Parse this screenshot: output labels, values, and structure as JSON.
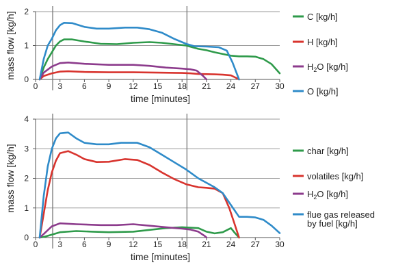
{
  "chart_data": [
    {
      "type": "line",
      "xlabel": "time [minutes]",
      "ylabel": "mass flow [kg/h]",
      "xlim": [
        0,
        30
      ],
      "ylim": [
        0,
        2
      ],
      "x_ticks": [
        0,
        3,
        6,
        9,
        12,
        15,
        18,
        21,
        24,
        27,
        30
      ],
      "y_ticks": [
        0,
        1,
        2
      ],
      "vertical_markers": [
        2.1,
        18.6
      ],
      "grid": "horizontal",
      "legend_position": "right",
      "series": [
        {
          "name": "C [kg/h]",
          "name_main": "C",
          "name_sub": "",
          "name_rest": " [kg/h]",
          "color": "#2e9a4a",
          "points": [
            [
              0.5,
              0
            ],
            [
              1,
              0.35
            ],
            [
              1.5,
              0.6
            ],
            [
              2,
              0.8
            ],
            [
              2.5,
              1
            ],
            [
              3,
              1.12
            ],
            [
              3.5,
              1.18
            ],
            [
              4.5,
              1.18
            ],
            [
              6,
              1.12
            ],
            [
              8,
              1.05
            ],
            [
              10,
              1.04
            ],
            [
              12,
              1.08
            ],
            [
              14,
              1.1
            ],
            [
              15.5,
              1.08
            ],
            [
              17,
              1.04
            ],
            [
              18.5,
              1
            ],
            [
              20,
              0.9
            ],
            [
              21,
              0.86
            ],
            [
              22,
              0.8
            ],
            [
              23,
              0.75
            ],
            [
              24,
              0.7
            ],
            [
              25,
              0.68
            ],
            [
              26,
              0.68
            ],
            [
              27,
              0.67
            ],
            [
              28,
              0.6
            ],
            [
              29,
              0.45
            ],
            [
              30,
              0.18
            ]
          ]
        },
        {
          "name": "H [kg/h]",
          "name_main": "H",
          "name_sub": "",
          "name_rest": " [kg/h]",
          "color": "#d8342e",
          "points": [
            [
              0.5,
              0
            ],
            [
              1,
              0.1
            ],
            [
              2,
              0.18
            ],
            [
              3,
              0.23
            ],
            [
              4,
              0.24
            ],
            [
              6,
              0.22
            ],
            [
              9,
              0.21
            ],
            [
              12,
              0.21
            ],
            [
              15,
              0.2
            ],
            [
              18,
              0.19
            ],
            [
              19,
              0.18
            ],
            [
              20,
              0.16
            ],
            [
              22,
              0.15
            ],
            [
              23,
              0.14
            ],
            [
              24,
              0.12
            ],
            [
              24.6,
              0.05
            ],
            [
              25,
              0
            ]
          ]
        },
        {
          "name": "H2O [kg/h]",
          "name_main": "H",
          "name_sub": "2",
          "name_rest": "O [kg/h]",
          "color": "#8c3b8c",
          "points": [
            [
              0.5,
              0
            ],
            [
              1,
              0.2
            ],
            [
              2,
              0.38
            ],
            [
              3,
              0.48
            ],
            [
              4,
              0.5
            ],
            [
              6,
              0.46
            ],
            [
              9,
              0.43
            ],
            [
              12,
              0.43
            ],
            [
              14,
              0.4
            ],
            [
              16,
              0.35
            ],
            [
              18,
              0.32
            ],
            [
              19,
              0.3
            ],
            [
              19.8,
              0.26
            ],
            [
              20.5,
              0.12
            ],
            [
              21,
              0
            ]
          ]
        },
        {
          "name": "O [kg/h]",
          "name_main": "O",
          "name_sub": "",
          "name_rest": " [kg/h]",
          "color": "#2f8bc9",
          "points": [
            [
              0.5,
              0
            ],
            [
              1,
              0.6
            ],
            [
              1.5,
              1
            ],
            [
              2,
              1.2
            ],
            [
              2.5,
              1.45
            ],
            [
              3,
              1.6
            ],
            [
              3.5,
              1.67
            ],
            [
              4.5,
              1.66
            ],
            [
              6,
              1.55
            ],
            [
              7.5,
              1.5
            ],
            [
              9,
              1.5
            ],
            [
              11,
              1.53
            ],
            [
              12.5,
              1.53
            ],
            [
              14,
              1.48
            ],
            [
              15.5,
              1.38
            ],
            [
              17,
              1.2
            ],
            [
              18.5,
              1.05
            ],
            [
              19.5,
              0.98
            ],
            [
              21,
              0.97
            ],
            [
              22.5,
              0.95
            ],
            [
              23.5,
              0.85
            ],
            [
              24.2,
              0.5
            ],
            [
              25,
              0
            ]
          ]
        }
      ]
    },
    {
      "type": "line",
      "xlabel": "time [minutes]",
      "ylabel": "mass flow [kg/h]",
      "xlim": [
        0,
        30
      ],
      "ylim": [
        0,
        4
      ],
      "x_ticks": [
        0,
        3,
        6,
        9,
        12,
        15,
        18,
        21,
        24,
        27,
        30
      ],
      "y_ticks": [
        0,
        1,
        2,
        3,
        4
      ],
      "vertical_markers": [
        2.1,
        18.6
      ],
      "grid": "horizontal",
      "legend_position": "right",
      "series": [
        {
          "name": "char  [kg/h]",
          "name_main": "char  [kg/h]",
          "name_sub": "",
          "name_rest": "",
          "color": "#2e9a4a",
          "points": [
            [
              0.5,
              0
            ],
            [
              1,
              0.02
            ],
            [
              2,
              0.1
            ],
            [
              3,
              0.18
            ],
            [
              5,
              0.22
            ],
            [
              7,
              0.2
            ],
            [
              9,
              0.18
            ],
            [
              12,
              0.2
            ],
            [
              14,
              0.26
            ],
            [
              16,
              0.32
            ],
            [
              18,
              0.35
            ],
            [
              20,
              0.32
            ],
            [
              21,
              0.2
            ],
            [
              22,
              0.14
            ],
            [
              23,
              0.18
            ],
            [
              24,
              0.32
            ],
            [
              24.5,
              0.15
            ],
            [
              25,
              0
            ]
          ]
        },
        {
          "name": "volatiles [kg/h]",
          "name_main": "volatiles [kg/h]",
          "name_sub": "",
          "name_rest": "",
          "color": "#d8342e",
          "points": [
            [
              0.5,
              0
            ],
            [
              1,
              0.8
            ],
            [
              1.5,
              1.6
            ],
            [
              2,
              2.2
            ],
            [
              2.5,
              2.6
            ],
            [
              3,
              2.85
            ],
            [
              4,
              2.92
            ],
            [
              5,
              2.8
            ],
            [
              6,
              2.65
            ],
            [
              7.5,
              2.55
            ],
            [
              9,
              2.56
            ],
            [
              11,
              2.65
            ],
            [
              12.5,
              2.62
            ],
            [
              14,
              2.45
            ],
            [
              15.5,
              2.2
            ],
            [
              17,
              1.98
            ],
            [
              18.5,
              1.8
            ],
            [
              20,
              1.7
            ],
            [
              21,
              1.68
            ],
            [
              22,
              1.65
            ],
            [
              23,
              1.5
            ],
            [
              23.8,
              1.0
            ],
            [
              24.4,
              0.5
            ],
            [
              25,
              0
            ]
          ]
        },
        {
          "name": "H2O [kg/h]",
          "name_main": "H",
          "name_sub": "2",
          "name_rest": "O [kg/h]",
          "color": "#8c3b8c",
          "points": [
            [
              0.5,
              0
            ],
            [
              1,
              0.12
            ],
            [
              2,
              0.38
            ],
            [
              3,
              0.48
            ],
            [
              5,
              0.45
            ],
            [
              8,
              0.42
            ],
            [
              10,
              0.42
            ],
            [
              12,
              0.45
            ],
            [
              14,
              0.4
            ],
            [
              16,
              0.35
            ],
            [
              18,
              0.3
            ],
            [
              19,
              0.27
            ],
            [
              20,
              0.2
            ],
            [
              20.8,
              0.05
            ],
            [
              21,
              0
            ]
          ]
        },
        {
          "name": "flue gas released by fuel [kg/h]",
          "name_main": "flue gas released",
          "name_line2": "by fuel [kg/h]",
          "name_sub": "",
          "name_rest": "",
          "color": "#2f8bc9",
          "points": [
            [
              0.5,
              0
            ],
            [
              1,
              1.4
            ],
            [
              1.5,
              2.4
            ],
            [
              2,
              3.0
            ],
            [
              2.5,
              3.35
            ],
            [
              3,
              3.52
            ],
            [
              4,
              3.55
            ],
            [
              5,
              3.35
            ],
            [
              6,
              3.2
            ],
            [
              7.5,
              3.15
            ],
            [
              9,
              3.15
            ],
            [
              10.5,
              3.2
            ],
            [
              12.5,
              3.2
            ],
            [
              14,
              3.05
            ],
            [
              15.5,
              2.8
            ],
            [
              17,
              2.55
            ],
            [
              18.5,
              2.3
            ],
            [
              20,
              2.0
            ],
            [
              21,
              1.85
            ],
            [
              22,
              1.7
            ],
            [
              23,
              1.5
            ],
            [
              24,
              1.1
            ],
            [
              25,
              0.7
            ],
            [
              26,
              0.7
            ],
            [
              27,
              0.68
            ],
            [
              28,
              0.6
            ],
            [
              29,
              0.4
            ],
            [
              30,
              0.15
            ]
          ]
        }
      ]
    }
  ]
}
